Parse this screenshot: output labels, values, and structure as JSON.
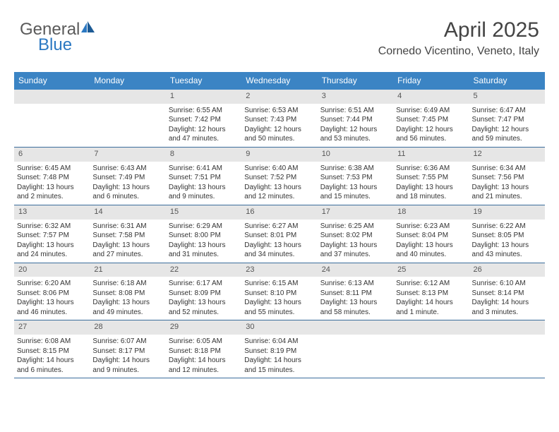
{
  "logo": {
    "part1": "General",
    "part2": "Blue"
  },
  "header": {
    "month_title": "April 2025",
    "location": "Cornedo Vicentino, Veneto, Italy"
  },
  "colors": {
    "header_band": "#3b84c4",
    "week_divider": "#3b6d9c",
    "daynum_bg": "#e6e6e6",
    "text": "#333333",
    "logo_gray": "#5a5a5a",
    "logo_blue": "#2b78c2"
  },
  "weekdays": [
    "Sunday",
    "Monday",
    "Tuesday",
    "Wednesday",
    "Thursday",
    "Friday",
    "Saturday"
  ],
  "weeks": [
    [
      {
        "num": "",
        "empty": true
      },
      {
        "num": "",
        "empty": true
      },
      {
        "num": "1",
        "sunrise": "Sunrise: 6:55 AM",
        "sunset": "Sunset: 7:42 PM",
        "daylight1": "Daylight: 12 hours",
        "daylight2": "and 47 minutes."
      },
      {
        "num": "2",
        "sunrise": "Sunrise: 6:53 AM",
        "sunset": "Sunset: 7:43 PM",
        "daylight1": "Daylight: 12 hours",
        "daylight2": "and 50 minutes."
      },
      {
        "num": "3",
        "sunrise": "Sunrise: 6:51 AM",
        "sunset": "Sunset: 7:44 PM",
        "daylight1": "Daylight: 12 hours",
        "daylight2": "and 53 minutes."
      },
      {
        "num": "4",
        "sunrise": "Sunrise: 6:49 AM",
        "sunset": "Sunset: 7:45 PM",
        "daylight1": "Daylight: 12 hours",
        "daylight2": "and 56 minutes."
      },
      {
        "num": "5",
        "sunrise": "Sunrise: 6:47 AM",
        "sunset": "Sunset: 7:47 PM",
        "daylight1": "Daylight: 12 hours",
        "daylight2": "and 59 minutes."
      }
    ],
    [
      {
        "num": "6",
        "sunrise": "Sunrise: 6:45 AM",
        "sunset": "Sunset: 7:48 PM",
        "daylight1": "Daylight: 13 hours",
        "daylight2": "and 2 minutes."
      },
      {
        "num": "7",
        "sunrise": "Sunrise: 6:43 AM",
        "sunset": "Sunset: 7:49 PM",
        "daylight1": "Daylight: 13 hours",
        "daylight2": "and 6 minutes."
      },
      {
        "num": "8",
        "sunrise": "Sunrise: 6:41 AM",
        "sunset": "Sunset: 7:51 PM",
        "daylight1": "Daylight: 13 hours",
        "daylight2": "and 9 minutes."
      },
      {
        "num": "9",
        "sunrise": "Sunrise: 6:40 AM",
        "sunset": "Sunset: 7:52 PM",
        "daylight1": "Daylight: 13 hours",
        "daylight2": "and 12 minutes."
      },
      {
        "num": "10",
        "sunrise": "Sunrise: 6:38 AM",
        "sunset": "Sunset: 7:53 PM",
        "daylight1": "Daylight: 13 hours",
        "daylight2": "and 15 minutes."
      },
      {
        "num": "11",
        "sunrise": "Sunrise: 6:36 AM",
        "sunset": "Sunset: 7:55 PM",
        "daylight1": "Daylight: 13 hours",
        "daylight2": "and 18 minutes."
      },
      {
        "num": "12",
        "sunrise": "Sunrise: 6:34 AM",
        "sunset": "Sunset: 7:56 PM",
        "daylight1": "Daylight: 13 hours",
        "daylight2": "and 21 minutes."
      }
    ],
    [
      {
        "num": "13",
        "sunrise": "Sunrise: 6:32 AM",
        "sunset": "Sunset: 7:57 PM",
        "daylight1": "Daylight: 13 hours",
        "daylight2": "and 24 minutes."
      },
      {
        "num": "14",
        "sunrise": "Sunrise: 6:31 AM",
        "sunset": "Sunset: 7:58 PM",
        "daylight1": "Daylight: 13 hours",
        "daylight2": "and 27 minutes."
      },
      {
        "num": "15",
        "sunrise": "Sunrise: 6:29 AM",
        "sunset": "Sunset: 8:00 PM",
        "daylight1": "Daylight: 13 hours",
        "daylight2": "and 31 minutes."
      },
      {
        "num": "16",
        "sunrise": "Sunrise: 6:27 AM",
        "sunset": "Sunset: 8:01 PM",
        "daylight1": "Daylight: 13 hours",
        "daylight2": "and 34 minutes."
      },
      {
        "num": "17",
        "sunrise": "Sunrise: 6:25 AM",
        "sunset": "Sunset: 8:02 PM",
        "daylight1": "Daylight: 13 hours",
        "daylight2": "and 37 minutes."
      },
      {
        "num": "18",
        "sunrise": "Sunrise: 6:23 AM",
        "sunset": "Sunset: 8:04 PM",
        "daylight1": "Daylight: 13 hours",
        "daylight2": "and 40 minutes."
      },
      {
        "num": "19",
        "sunrise": "Sunrise: 6:22 AM",
        "sunset": "Sunset: 8:05 PM",
        "daylight1": "Daylight: 13 hours",
        "daylight2": "and 43 minutes."
      }
    ],
    [
      {
        "num": "20",
        "sunrise": "Sunrise: 6:20 AM",
        "sunset": "Sunset: 8:06 PM",
        "daylight1": "Daylight: 13 hours",
        "daylight2": "and 46 minutes."
      },
      {
        "num": "21",
        "sunrise": "Sunrise: 6:18 AM",
        "sunset": "Sunset: 8:08 PM",
        "daylight1": "Daylight: 13 hours",
        "daylight2": "and 49 minutes."
      },
      {
        "num": "22",
        "sunrise": "Sunrise: 6:17 AM",
        "sunset": "Sunset: 8:09 PM",
        "daylight1": "Daylight: 13 hours",
        "daylight2": "and 52 minutes."
      },
      {
        "num": "23",
        "sunrise": "Sunrise: 6:15 AM",
        "sunset": "Sunset: 8:10 PM",
        "daylight1": "Daylight: 13 hours",
        "daylight2": "and 55 minutes."
      },
      {
        "num": "24",
        "sunrise": "Sunrise: 6:13 AM",
        "sunset": "Sunset: 8:11 PM",
        "daylight1": "Daylight: 13 hours",
        "daylight2": "and 58 minutes."
      },
      {
        "num": "25",
        "sunrise": "Sunrise: 6:12 AM",
        "sunset": "Sunset: 8:13 PM",
        "daylight1": "Daylight: 14 hours",
        "daylight2": "and 1 minute."
      },
      {
        "num": "26",
        "sunrise": "Sunrise: 6:10 AM",
        "sunset": "Sunset: 8:14 PM",
        "daylight1": "Daylight: 14 hours",
        "daylight2": "and 3 minutes."
      }
    ],
    [
      {
        "num": "27",
        "sunrise": "Sunrise: 6:08 AM",
        "sunset": "Sunset: 8:15 PM",
        "daylight1": "Daylight: 14 hours",
        "daylight2": "and 6 minutes."
      },
      {
        "num": "28",
        "sunrise": "Sunrise: 6:07 AM",
        "sunset": "Sunset: 8:17 PM",
        "daylight1": "Daylight: 14 hours",
        "daylight2": "and 9 minutes."
      },
      {
        "num": "29",
        "sunrise": "Sunrise: 6:05 AM",
        "sunset": "Sunset: 8:18 PM",
        "daylight1": "Daylight: 14 hours",
        "daylight2": "and 12 minutes."
      },
      {
        "num": "30",
        "sunrise": "Sunrise: 6:04 AM",
        "sunset": "Sunset: 8:19 PM",
        "daylight1": "Daylight: 14 hours",
        "daylight2": "and 15 minutes."
      },
      {
        "num": "",
        "empty": true
      },
      {
        "num": "",
        "empty": true
      },
      {
        "num": "",
        "empty": true
      }
    ]
  ]
}
